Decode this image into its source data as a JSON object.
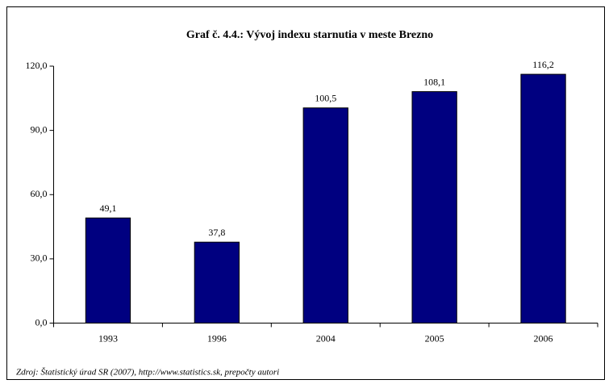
{
  "chart_data": {
    "type": "bar",
    "title": "Graf č. 4.4.: Vývoj indexu starnutia v meste Brezno",
    "categories": [
      "1993",
      "1996",
      "2004",
      "2005",
      "2006"
    ],
    "values": [
      49.1,
      37.8,
      100.5,
      108.1,
      116.2
    ],
    "value_labels": [
      "49,1",
      "37,8",
      "100,5",
      "108,1",
      "116,2"
    ],
    "color": "#000080",
    "ylim": [
      0,
      120
    ],
    "yticks": [
      {
        "value": 0,
        "label": "0,0"
      },
      {
        "value": 30,
        "label": "30,0"
      },
      {
        "value": 60,
        "label": "60,0"
      },
      {
        "value": 90,
        "label": "90,0"
      },
      {
        "value": 120,
        "label": "120,0"
      }
    ],
    "grid": false,
    "source": "Zdroj: Štatistický úrad SR (2007), http://www.statistics.sk, prepočty autori"
  }
}
